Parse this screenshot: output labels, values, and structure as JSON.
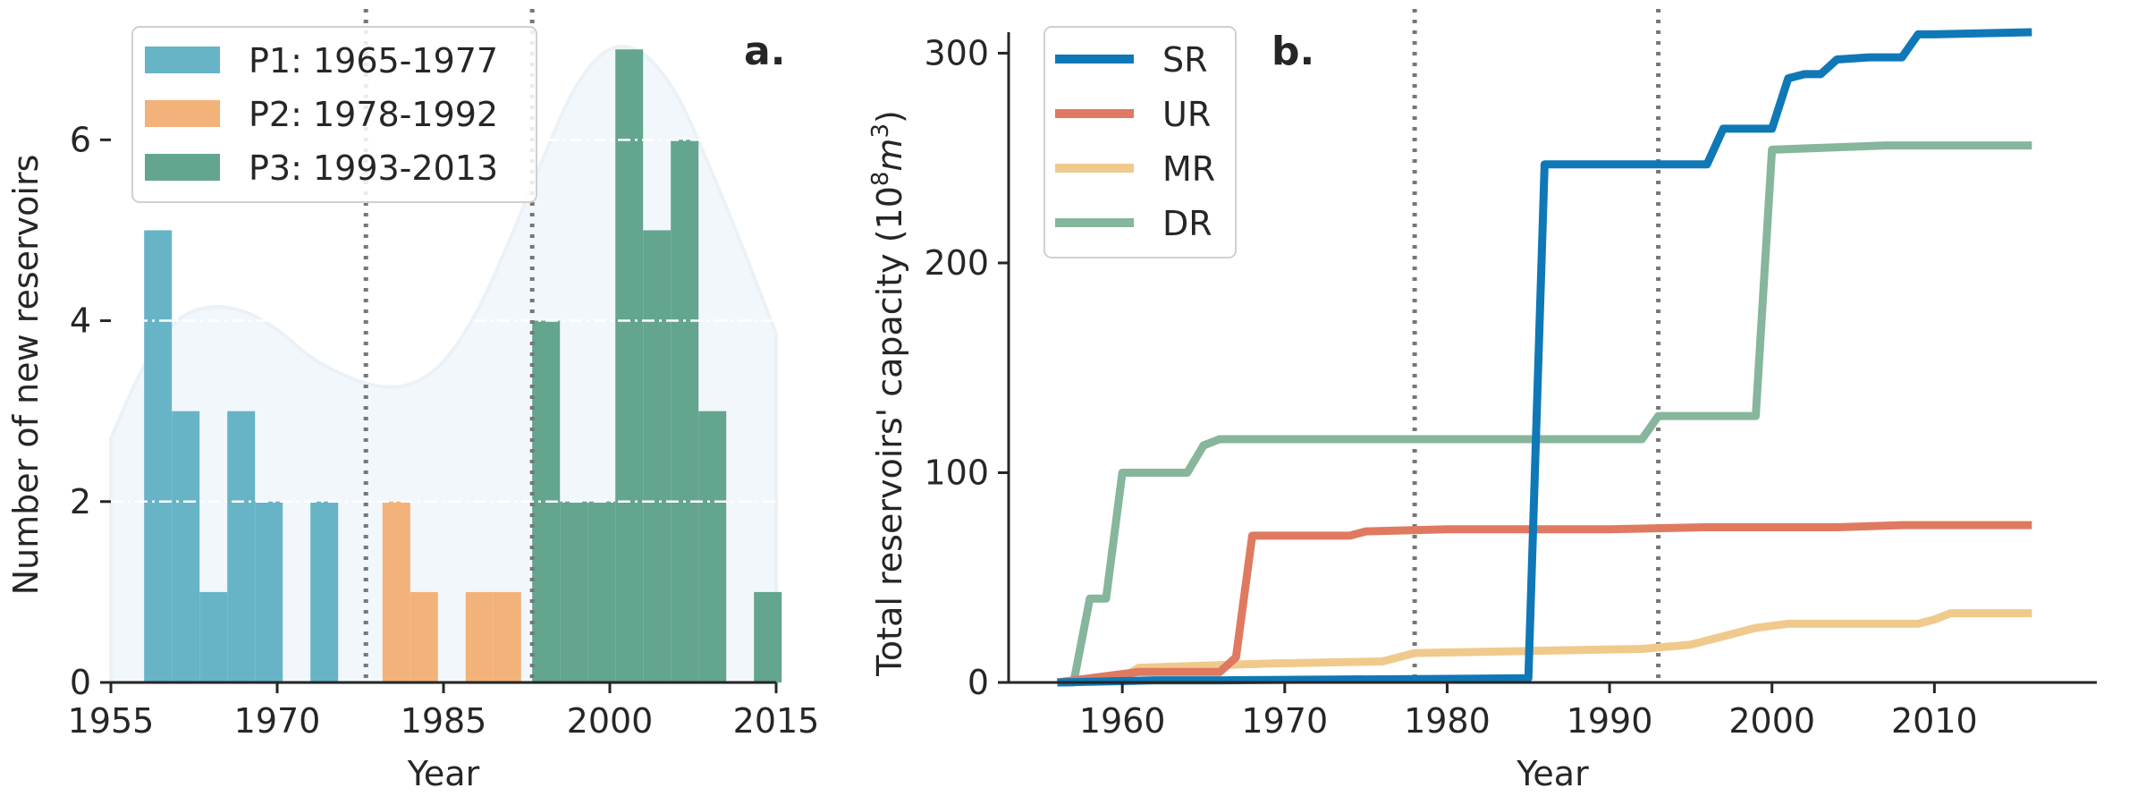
{
  "chart_data": [
    {
      "type": "bar",
      "panel_label": "a.",
      "xlabel": "Year",
      "ylabel": "Number of new reservoirs",
      "xlim": [
        1955,
        2015
      ],
      "ylim": [
        0,
        7.2
      ],
      "xticks": [
        "1955",
        "1970",
        "1985",
        "2000",
        "2015"
      ],
      "yticks": [
        "0",
        "2",
        "4",
        "6"
      ],
      "bin_width": 2.5,
      "grid": "y, dash-dot white",
      "legend_position": "top-left",
      "dividers": [
        1978,
        1993
      ],
      "series": [
        {
          "name": "P1: 1965-1977",
          "color": "#67b4c7",
          "bins": [
            {
              "start": 1958,
              "value": 5
            },
            {
              "start": 1960.5,
              "value": 3
            },
            {
              "start": 1963,
              "value": 1
            },
            {
              "start": 1965.5,
              "value": 3
            },
            {
              "start": 1968,
              "value": 2
            },
            {
              "start": 1973,
              "value": 2
            }
          ]
        },
        {
          "name": "P2: 1978-1992",
          "color": "#f2b27a",
          "bins": [
            {
              "start": 1979.5,
              "value": 2
            },
            {
              "start": 1982,
              "value": 1
            },
            {
              "start": 1987,
              "value": 1
            },
            {
              "start": 1989.5,
              "value": 1
            }
          ]
        },
        {
          "name": "P3: 1993-2013",
          "color": "#63a58e",
          "bins": [
            {
              "start": 1993,
              "value": 4
            },
            {
              "start": 1995.5,
              "value": 2
            },
            {
              "start": 1998,
              "value": 2
            },
            {
              "start": 2000.5,
              "value": 7
            },
            {
              "start": 2003,
              "value": 5
            },
            {
              "start": 2005.5,
              "value": 6
            },
            {
              "start": 2008,
              "value": 3
            },
            {
              "start": 2013,
              "value": 1
            }
          ]
        }
      ],
      "density_curve": {
        "color": "#eaf2f8",
        "x": [
          1955,
          1958,
          1961,
          1964,
          1967,
          1970,
          1973,
          1976,
          1979,
          1982,
          1985,
          1988,
          1991,
          1994,
          1997,
          2000,
          2003,
          2006,
          2009,
          2012,
          2015
        ],
        "y": [
          2.7,
          3.5,
          4.0,
          4.15,
          4.1,
          3.9,
          3.6,
          3.4,
          3.28,
          3.3,
          3.55,
          4.1,
          4.9,
          5.8,
          6.6,
          7.0,
          6.95,
          6.5,
          5.7,
          4.8,
          3.85
        ]
      }
    },
    {
      "type": "line",
      "panel_label": "b.",
      "xlabel": "Year",
      "ylabel": "Total reservoirs' capacity (10",
      "ylabel_sup": "8",
      "ylabel_unit": "m",
      "ylabel_unit_sup": "3",
      "ylabel_close": ")",
      "xlim": [
        1953,
        2020
      ],
      "ylim": [
        0,
        310
      ],
      "xticks": [
        1960,
        1970,
        1980,
        1990,
        2000,
        2010
      ],
      "yticks": [
        0,
        100,
        200,
        300
      ],
      "legend_position": "top-left",
      "dividers": [
        1978,
        1993
      ],
      "series": [
        {
          "name": "SR",
          "color": "#0f78b7",
          "step": true,
          "x": [
            1956,
            1962,
            1966,
            1985,
            1986,
            1996,
            1997,
            1999,
            2000,
            2001,
            2002,
            2003,
            2004,
            2006,
            2008,
            2009,
            2010,
            2016
          ],
          "y": [
            0,
            1,
            1,
            2,
            247,
            247,
            264,
            264,
            264,
            288,
            290,
            290,
            297,
            298,
            298,
            309,
            309,
            310
          ]
        },
        {
          "name": "UR",
          "color": "#df7a60",
          "step": true,
          "x": [
            1956,
            1959,
            1961,
            1966,
            1967,
            1968,
            1974,
            1975,
            1980,
            1990,
            1996,
            2004,
            2008,
            2016
          ],
          "y": [
            0,
            3,
            5,
            5,
            12,
            70,
            70,
            72,
            73,
            73,
            74,
            74,
            75,
            75
          ]
        },
        {
          "name": "MR",
          "color": "#f0ca8c",
          "step": true,
          "x": [
            1956,
            1960,
            1961,
            1969,
            1976,
            1978,
            1992,
            1995,
            1999,
            2001,
            2009,
            2010,
            2011,
            2016
          ],
          "y": [
            0,
            2,
            7,
            9,
            10,
            14,
            16,
            18,
            26,
            28,
            28,
            30,
            33,
            33
          ]
        },
        {
          "name": "DR",
          "color": "#86b69b",
          "step": true,
          "x": [
            1956,
            1957,
            1958,
            1959,
            1960,
            1964,
            1965,
            1966,
            1991,
            1992,
            1993,
            1999,
            2000,
            2007,
            2016
          ],
          "y": [
            0,
            0,
            40,
            40,
            100,
            100,
            113,
            116,
            116,
            116,
            127,
            127,
            254,
            256,
            256
          ]
        }
      ]
    }
  ]
}
